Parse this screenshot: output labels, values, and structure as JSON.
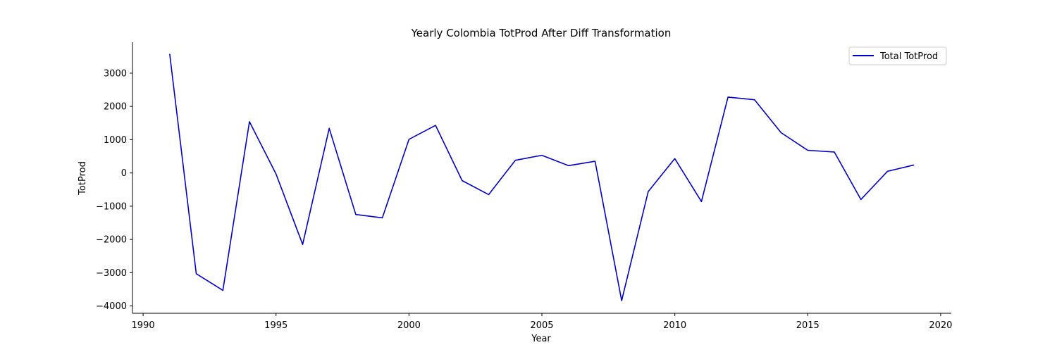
{
  "chart_data": {
    "type": "line",
    "title": "Yearly Colombia TotProd After Diff Transformation",
    "xlabel": "Year",
    "ylabel": "TotProd",
    "xlim": [
      1989.6,
      2020.4
    ],
    "ylim": [
      -4220,
      3930
    ],
    "xticks": [
      1990,
      1995,
      2000,
      2005,
      2010,
      2015,
      2020
    ],
    "yticks": [
      -4000,
      -3000,
      -2000,
      -1000,
      0,
      1000,
      2000,
      3000
    ],
    "ytick_labels": [
      "−4000",
      "−3000",
      "−2000",
      "−1000",
      "0",
      "1000",
      "2000",
      "3000"
    ],
    "grid": false,
    "legend_position": "top-right",
    "series": [
      {
        "name": "Total TotProd",
        "color": "#0000cc",
        "x": [
          1991,
          1992,
          1993,
          1994,
          1995,
          1996,
          1997,
          1998,
          1999,
          2000,
          2001,
          2002,
          2003,
          2004,
          2005,
          2006,
          2007,
          2008,
          2009,
          2010,
          2011,
          2012,
          2013,
          2014,
          2015,
          2016,
          2017,
          2018,
          2019
        ],
        "y": [
          3580,
          -3030,
          -3530,
          1540,
          -30,
          -2150,
          1340,
          -1250,
          -1350,
          1010,
          1430,
          -230,
          -650,
          380,
          530,
          220,
          350,
          -3840,
          -560,
          430,
          -860,
          2280,
          2200,
          1210,
          680,
          630,
          -800,
          50,
          240
        ]
      }
    ]
  }
}
